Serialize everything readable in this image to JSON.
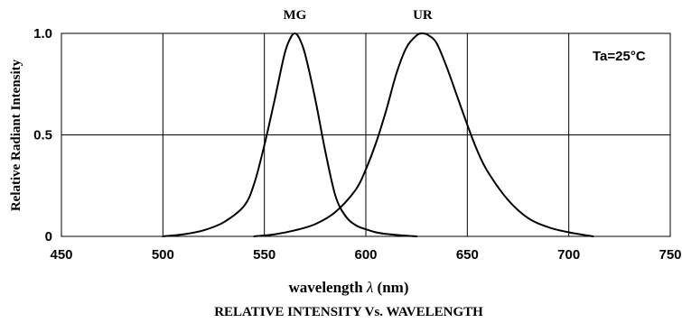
{
  "chart_data": {
    "type": "line",
    "title": "RELATIVE INTENSITY Vs. WAVELENGTH",
    "xlabel": "wavelength λ (nm)",
    "ylabel": "Relative Radiant Intensity",
    "xlim": [
      450,
      750
    ],
    "ylim": [
      0,
      1.0
    ],
    "x_ticks": [
      "450",
      "500",
      "550",
      "600",
      "650",
      "700",
      "750"
    ],
    "y_ticks": [
      "0",
      "0.5",
      "1.0"
    ],
    "grid": true,
    "annotation": "Ta=25°C",
    "series": [
      {
        "name": "MG",
        "x": [
          500,
          510,
          520,
          530,
          540,
          545,
          550,
          555,
          560,
          563,
          565,
          567,
          570,
          575,
          580,
          585,
          590,
          595,
          600,
          605,
          610,
          615,
          620,
          625
        ],
        "y": [
          0.0,
          0.01,
          0.03,
          0.07,
          0.15,
          0.26,
          0.45,
          0.67,
          0.9,
          0.98,
          1.0,
          0.98,
          0.9,
          0.68,
          0.42,
          0.2,
          0.1,
          0.055,
          0.035,
          0.02,
          0.012,
          0.007,
          0.003,
          0.0
        ]
      },
      {
        "name": "UR",
        "x": [
          545,
          555,
          565,
          575,
          585,
          595,
          600,
          605,
          610,
          615,
          620,
          625,
          628,
          631,
          635,
          640,
          645,
          650,
          655,
          660,
          670,
          680,
          690,
          700,
          712
        ],
        "y": [
          0.0,
          0.01,
          0.03,
          0.06,
          0.12,
          0.23,
          0.33,
          0.46,
          0.62,
          0.8,
          0.93,
          0.99,
          1.0,
          0.99,
          0.95,
          0.83,
          0.69,
          0.55,
          0.42,
          0.32,
          0.18,
          0.09,
          0.045,
          0.02,
          0.0
        ]
      }
    ]
  }
}
